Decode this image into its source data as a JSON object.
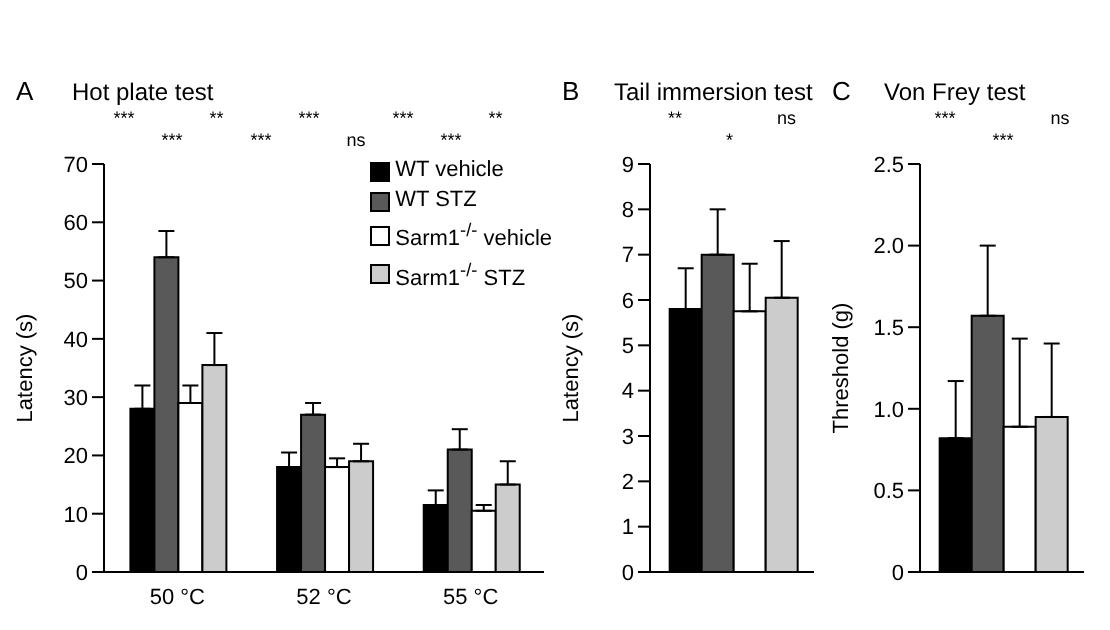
{
  "chart_data": [
    {
      "type": "bar",
      "title": "Hot plate test",
      "ylabel": "Latency (s)",
      "categories": [
        "50 °C",
        "52 °C",
        "55 °C"
      ],
      "ylim": [
        0,
        70
      ],
      "yticks": [
        0,
        10,
        20,
        30,
        40,
        50,
        60,
        70
      ],
      "legend": "top right",
      "grid": false,
      "annotations": [
        "A",
        "***",
        "***",
        "**",
        "***",
        "***",
        "ns",
        "***",
        "***",
        "**"
      ],
      "series": [
        {
          "name": "WT vehicle",
          "color": "#000000",
          "values": [
            28,
            18,
            11.5
          ],
          "errors": [
            [
              28,
              32
            ],
            [
              18,
              20.5
            ],
            [
              11.5,
              14
            ]
          ]
        },
        {
          "name": "WT STZ",
          "color": "#595959",
          "values": [
            54,
            27,
            21
          ],
          "errors": [
            [
              54,
              58.5
            ],
            [
              27,
              29
            ],
            [
              21,
              24.5
            ]
          ]
        },
        {
          "name": "Sarm1$^{-/-}$ vehicle",
          "color": "#ffffff",
          "values": [
            29,
            18,
            10.5
          ],
          "errors": [
            [
              29,
              32
            ],
            [
              18,
              19.5
            ],
            [
              10.5,
              11.5
            ]
          ]
        },
        {
          "name": "Sarm1$^{-/-}$ STZ",
          "color": "#cccccc",
          "values": [
            35.5,
            19,
            15
          ],
          "errors": [
            [
              35.5,
              41
            ],
            [
              19,
              22
            ],
            [
              15,
              19
            ]
          ]
        }
      ]
    },
    {
      "type": "bar",
      "title": "Tail immersion test",
      "ylabel": "Latency (s)",
      "categories": [
        null
      ],
      "ylim": [
        0,
        9
      ],
      "yticks": [
        0,
        1,
        2,
        3,
        4,
        5,
        6,
        7,
        8,
        9
      ],
      "grid": false,
      "annotations": [
        "B",
        "**",
        "*",
        "ns"
      ],
      "series": [
        {
          "color": "#000000",
          "values": [
            5.8
          ],
          "errors": [
            [
              5.8,
              6.7
            ]
          ]
        },
        {
          "color": "#595959",
          "values": [
            7.0
          ],
          "errors": [
            [
              7.0,
              8.0
            ]
          ]
        },
        {
          "color": "#ffffff",
          "values": [
            5.75
          ],
          "errors": [
            [
              5.75,
              6.8
            ]
          ]
        },
        {
          "color": "#cccccc",
          "values": [
            6.05
          ],
          "errors": [
            [
              6.05,
              7.3
            ]
          ]
        }
      ]
    },
    {
      "type": "bar",
      "title": "Von Frey test",
      "ylabel": "Threshold (g)",
      "categories": [
        null
      ],
      "ylim": [
        0,
        2.5
      ],
      "yticks": [
        0,
        0.5,
        {
          "value": 1,
          "label": "1.0"
        },
        1.5,
        {
          "value": 2,
          "label": "2.0"
        },
        2.5
      ],
      "grid": false,
      "annotations": [
        "C",
        "***",
        "***",
        "ns"
      ],
      "series": [
        {
          "color": "#000000",
          "values": [
            0.82
          ],
          "errors": [
            [
              0.82,
              1.17
            ]
          ]
        },
        {
          "color": "#595959",
          "values": [
            1.57
          ],
          "errors": [
            [
              1.57,
              2.0
            ]
          ]
        },
        {
          "color": "#ffffff",
          "values": [
            0.89
          ],
          "errors": [
            [
              0.89,
              1.43
            ]
          ]
        },
        {
          "color": "#cccccc",
          "values": [
            0.95
          ],
          "errors": [
            [
              0.95,
              1.4
            ]
          ]
        }
      ]
    }
  ]
}
